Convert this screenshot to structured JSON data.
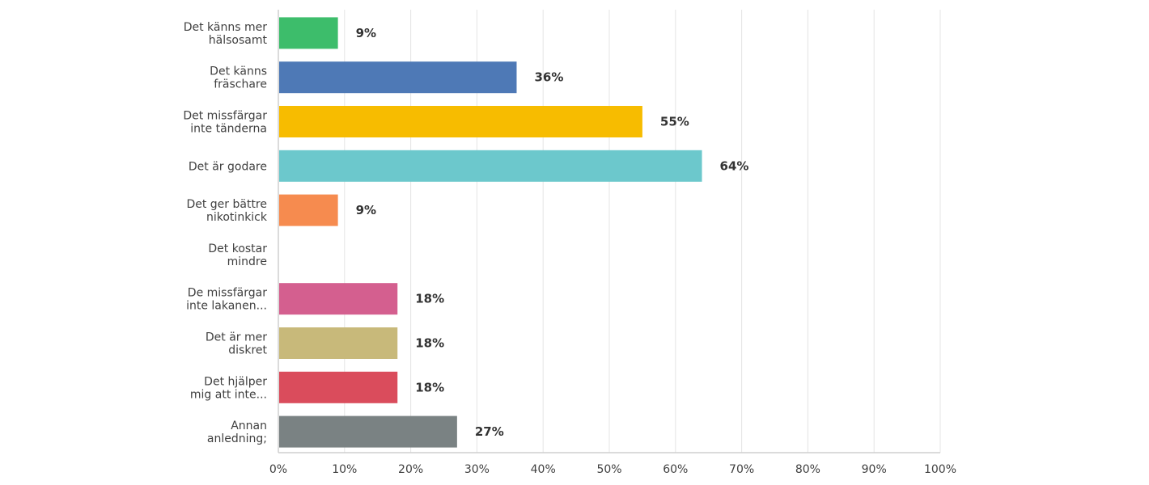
{
  "chart_data": {
    "type": "bar",
    "orientation": "horizontal",
    "categories": [
      [
        "Det känns mer",
        "hälsosamt"
      ],
      [
        "Det känns",
        "fräschare"
      ],
      [
        "Det missfärgar",
        "inte tänderna"
      ],
      [
        "Det är godare"
      ],
      [
        "Det ger bättre",
        "nikotinkick"
      ],
      [
        "Det kostar",
        "mindre"
      ],
      [
        "De missfärgar",
        "inte lakanen..."
      ],
      [
        "Det är mer",
        "diskret"
      ],
      [
        "Det hjälper",
        "mig att inte..."
      ],
      [
        "Annan",
        "anledning;"
      ]
    ],
    "values": [
      9,
      36,
      55,
      64,
      9,
      0,
      18,
      18,
      18,
      27
    ],
    "value_labels": [
      "9%",
      "36%",
      "55%",
      "64%",
      "9%",
      "",
      "18%",
      "18%",
      "18%",
      "27%"
    ],
    "colors": [
      "#3dbd6b",
      "#4e79b6",
      "#f7bc00",
      "#6cc8cc",
      "#f68b4f",
      "#cccccc",
      "#d45f8f",
      "#c8b97a",
      "#da4c5c",
      "#7a8283"
    ],
    "x_ticks": [
      "0%",
      "10%",
      "20%",
      "30%",
      "40%",
      "50%",
      "60%",
      "70%",
      "80%",
      "90%",
      "100%"
    ],
    "xlim": [
      0,
      100
    ],
    "grid": "vertical",
    "legend": "none",
    "title": "",
    "xlabel": "",
    "ylabel": ""
  }
}
